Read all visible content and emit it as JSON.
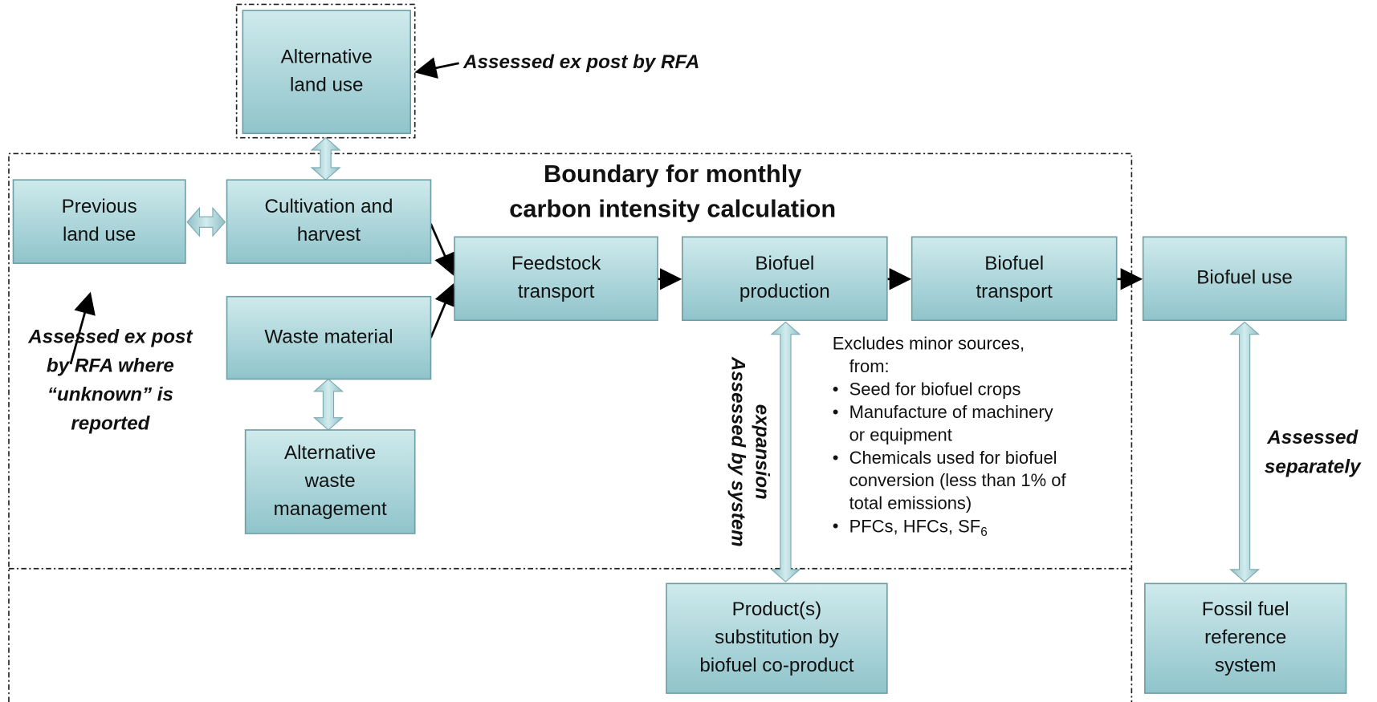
{
  "nodes": [
    {
      "lines": [
        "Alternative",
        "land use"
      ]
    },
    {
      "lines": [
        "Previous",
        "land use"
      ]
    },
    {
      "lines": [
        "Cultivation and",
        "harvest"
      ]
    },
    {
      "lines": [
        "Waste material"
      ]
    },
    {
      "lines": [
        "Alternative",
        "waste",
        "management"
      ]
    },
    {
      "lines": [
        "Feedstock",
        "transport"
      ]
    },
    {
      "lines": [
        "Biofuel",
        "production"
      ]
    },
    {
      "lines": [
        "Biofuel",
        "transport"
      ]
    },
    {
      "lines": [
        "Biofuel use"
      ]
    },
    {
      "lines": [
        "Product(s)",
        "substitution by",
        "biofuel co-product"
      ]
    },
    {
      "lines": [
        "Fossil fuel",
        "reference",
        "system"
      ]
    }
  ],
  "boundary_title": [
    "Boundary for monthly",
    "carbon intensity calculation"
  ],
  "annotations": {
    "top": "Assessed ex post by RFA",
    "left": [
      "Assessed ex post",
      "by RFA where",
      "“unknown” is",
      "reported"
    ],
    "vertical": [
      "Assessed by system",
      "expansion"
    ],
    "right": [
      "Assessed",
      "separately"
    ]
  },
  "excludes": {
    "heading": [
      "Excludes minor sources,",
      "from:"
    ],
    "bullets": [
      [
        "Seed for biofuel crops"
      ],
      [
        "Manufacture of machinery",
        "or equipment"
      ],
      [
        "Chemicals used for biofuel",
        "conversion (less than 1% of",
        "total emissions)"
      ]
    ],
    "last_bullet": {
      "text": "PFCs, HFCs, SF",
      "sub": "6"
    }
  }
}
